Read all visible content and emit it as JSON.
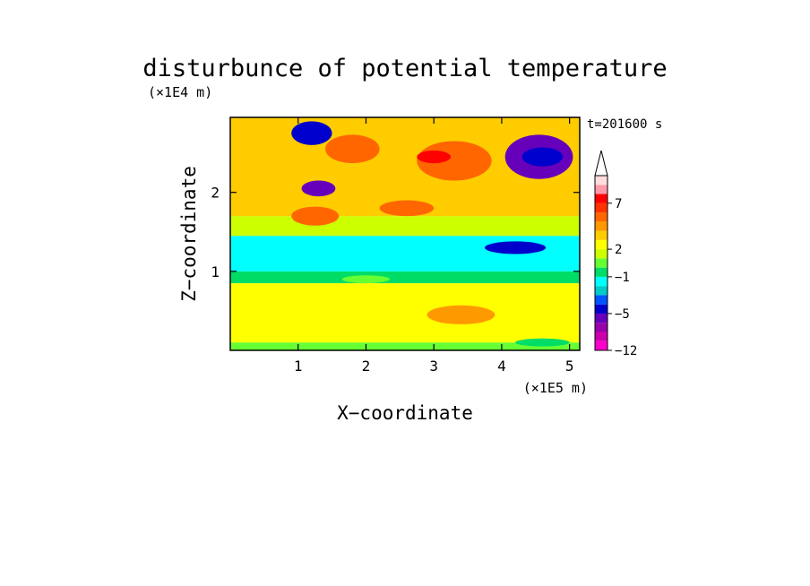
{
  "chart_data": {
    "type": "heatmap",
    "title": "disturbunce of potential temperature",
    "time_label": "t=201600 s",
    "xlabel": "X−coordinate",
    "ylabel": "Z−coordinate",
    "x_unit": "(×1E5 m)",
    "y_unit": "(×1E4 m)",
    "xlim": [
      0,
      5.15
    ],
    "ylim": [
      0,
      2.95
    ],
    "x_ticks": [
      1,
      2,
      3,
      4,
      5
    ],
    "x_tick_labels": [
      "1",
      "2",
      "3",
      "4",
      "5"
    ],
    "y_ticks": [
      1,
      2
    ],
    "y_tick_labels": [
      "1",
      "2"
    ],
    "colorbar": {
      "levels_shown": [
        "7",
        "2",
        "−1",
        "−5",
        "−12"
      ],
      "level_values": [
        7,
        2,
        -1,
        -5,
        -12
      ],
      "bins": [
        -12,
        -10,
        -8,
        -6,
        -5,
        -4,
        -3,
        -2,
        -1,
        0,
        1,
        2,
        3,
        4,
        5,
        6,
        7,
        9,
        11
      ],
      "colors": [
        "#ff00cc",
        "#cc00aa",
        "#9900aa",
        "#6600bb",
        "#0000cc",
        "#0055ff",
        "#00cccc",
        "#00ffff",
        "#00dd66",
        "#66ff33",
        "#ccff00",
        "#ffff00",
        "#ffcc00",
        "#ff9900",
        "#ff6600",
        "#ff3300",
        "#ff0000",
        "#ff99aa",
        "#ffdddd"
      ],
      "extend": "max"
    },
    "field_layers": [
      {
        "z": [
          0.0,
          0.1
        ],
        "value": 0.5
      },
      {
        "z": [
          0.1,
          0.85
        ],
        "value": 2.5
      },
      {
        "z": [
          0.85,
          1.0
        ],
        "value": -0.5
      },
      {
        "z": [
          1.0,
          1.45
        ],
        "value": -1.5
      },
      {
        "z": [
          1.45,
          1.7
        ],
        "value": 1.5
      },
      {
        "z": [
          1.7,
          2.95
        ],
        "value": 3.0
      }
    ],
    "features": [
      {
        "x": 3.3,
        "z": 2.4,
        "value": 5.5,
        "rx": 0.55,
        "rz": 0.25
      },
      {
        "x": 3.0,
        "z": 2.45,
        "value": 7.5,
        "rx": 0.25,
        "rz": 0.08
      },
      {
        "x": 4.55,
        "z": 2.45,
        "value": -5.5,
        "rx": 0.5,
        "rz": 0.28
      },
      {
        "x": 4.6,
        "z": 2.45,
        "value": -4.5,
        "rx": 0.3,
        "rz": 0.12
      },
      {
        "x": 1.2,
        "z": 2.75,
        "value": -4.5,
        "rx": 0.3,
        "rz": 0.15
      },
      {
        "x": 1.8,
        "z": 2.55,
        "value": 5.0,
        "rx": 0.4,
        "rz": 0.18
      },
      {
        "x": 1.3,
        "z": 2.05,
        "value": -5.5,
        "rx": 0.25,
        "rz": 0.1
      },
      {
        "x": 1.25,
        "z": 1.7,
        "value": 5.5,
        "rx": 0.35,
        "rz": 0.12
      },
      {
        "x": 2.6,
        "z": 1.8,
        "value": 5.0,
        "rx": 0.4,
        "rz": 0.1
      },
      {
        "x": 4.2,
        "z": 1.3,
        "value": -4.5,
        "rx": 0.45,
        "rz": 0.08
      },
      {
        "x": 2.0,
        "z": 0.9,
        "value": 0.5,
        "rx": 0.35,
        "rz": 0.05
      },
      {
        "x": 3.4,
        "z": 0.45,
        "value": 4.5,
        "rx": 0.5,
        "rz": 0.12
      },
      {
        "x": 4.6,
        "z": 0.1,
        "value": -0.5,
        "rx": 0.4,
        "rz": 0.05
      }
    ]
  }
}
